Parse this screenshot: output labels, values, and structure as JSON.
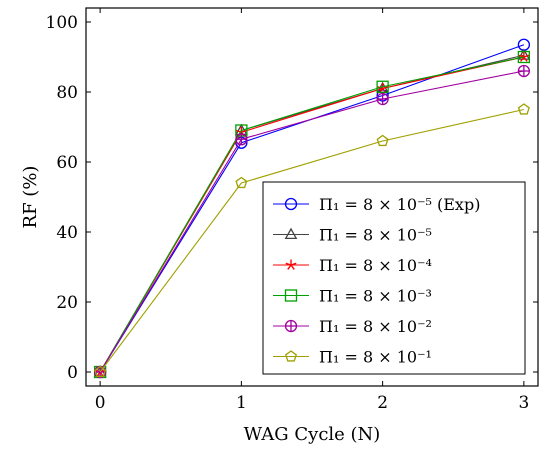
{
  "chart_data": {
    "type": "line",
    "xlabel": "WAG Cycle (N)",
    "ylabel": "RF (%)",
    "x": [
      0,
      1,
      2,
      3
    ],
    "xlim": [
      -0.1,
      3.1
    ],
    "ylim": [
      -4,
      104
    ],
    "xticks": [
      "0",
      "1",
      "2",
      "3"
    ],
    "yticks": [
      "0",
      "20",
      "40",
      "60",
      "80",
      "100"
    ],
    "legend_position": "bottom-right",
    "grid": false,
    "series": [
      {
        "name": "Π₁ = 8 × 10⁻⁵ (Exp)",
        "color": "#0000ff",
        "marker": "circle",
        "values": [
          0,
          65.5,
          79.0,
          93.5
        ]
      },
      {
        "name": "Π₁ = 8 × 10⁻⁵",
        "color": "#444444",
        "marker": "triangle",
        "values": [
          0,
          69.0,
          81.0,
          90.5
        ]
      },
      {
        "name": "Π₁ = 8 × 10⁻⁴",
        "color": "#ff0000",
        "marker": "star",
        "values": [
          0,
          68.5,
          81.0,
          90.0
        ]
      },
      {
        "name": "Π₁ = 8 × 10⁻³",
        "color": "#00a000",
        "marker": "square",
        "values": [
          0,
          69.0,
          81.5,
          90.0
        ]
      },
      {
        "name": "Π₁ = 8 × 10⁻²",
        "color": "#a000a0",
        "marker": "circle-plus",
        "values": [
          0,
          66.5,
          78.0,
          86.0
        ]
      },
      {
        "name": "Π₁ = 8 × 10⁻¹",
        "color": "#a0a000",
        "marker": "pentagon",
        "values": [
          0,
          54.0,
          66.0,
          75.0
        ]
      }
    ]
  }
}
